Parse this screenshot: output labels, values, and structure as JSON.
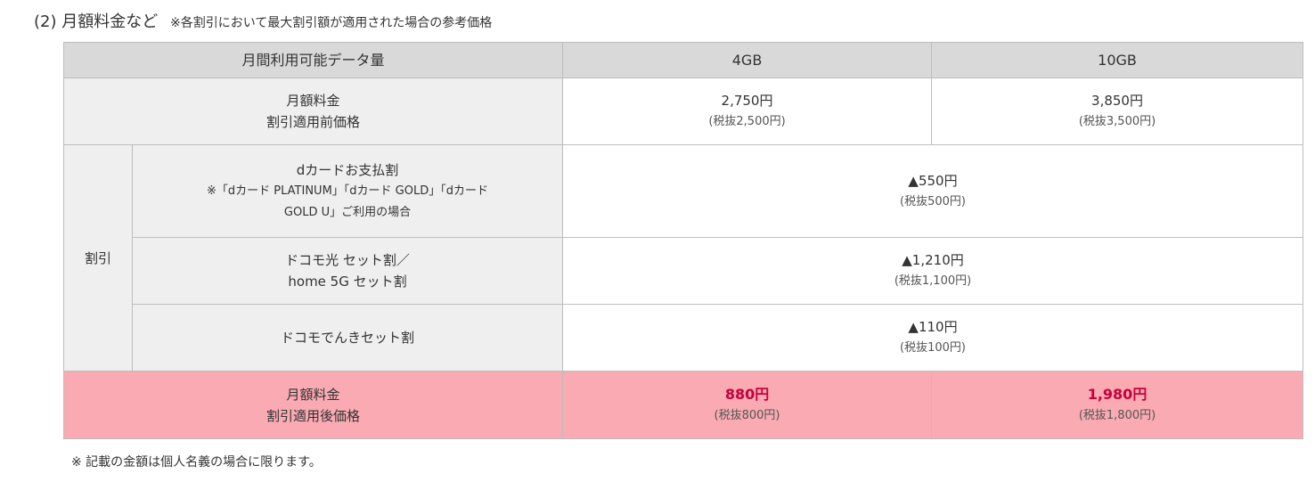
{
  "title": {
    "number": "(2)",
    "main": "月額料金など",
    "note": "※各割引において最大割引額が適用された場合の参考価格"
  },
  "table": {
    "header": {
      "label": "月間利用可能データ量",
      "plans": [
        "4GB",
        "10GB"
      ]
    },
    "base": {
      "label1": "月額料金",
      "label2": "割引適用前価格",
      "prices": [
        {
          "price": "2,750円",
          "tax": "(税抜2,500円)"
        },
        {
          "price": "3,850円",
          "tax": "(税抜3,500円)"
        }
      ]
    },
    "discount_group": "割引",
    "discounts": [
      {
        "name": "dカードお支払割",
        "note1": "※「dカード PLATINUM」「dカード GOLD」「dカード",
        "note2": "GOLD U」ご利用の場合",
        "amount": "▲550円",
        "tax": "(税抜500円)"
      },
      {
        "name1": "ドコモ光 セット割／",
        "name2": "home 5G セット割",
        "amount": "▲1,210円",
        "tax": "(税抜1,100円)"
      },
      {
        "name": "ドコモでんきセット割",
        "amount": "▲110円",
        "tax": "(税抜100円)"
      }
    ],
    "final": {
      "label1": "月額料金",
      "label2": "割引適用後価格",
      "prices": [
        {
          "price": "880円",
          "tax": "(税抜800円)"
        },
        {
          "price": "1,980円",
          "tax": "(税抜1,800円)"
        }
      ]
    }
  },
  "footnote": "※ 記載の金額は個人名義の場合に限ります。",
  "colors": {
    "header_bg": "#d9d9d9",
    "label_bg": "#efefef",
    "final_bg": "#f9aab2",
    "final_price": "#c8003c"
  }
}
